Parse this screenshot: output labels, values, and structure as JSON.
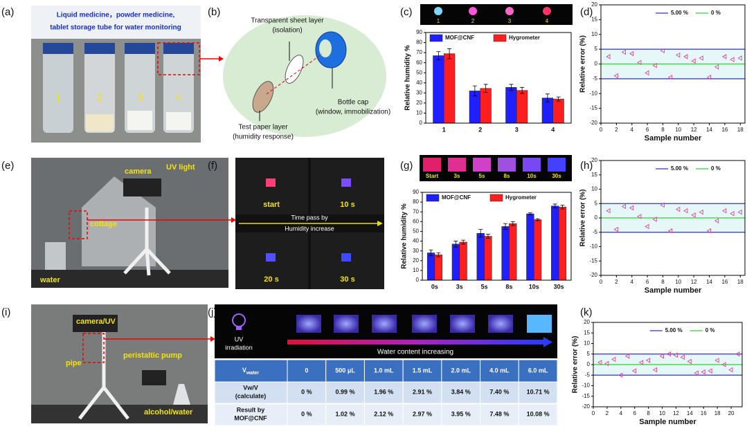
{
  "panel_labels": [
    "(a)",
    "(b)",
    "(c)",
    "(d)",
    "(e)",
    "(f)",
    "(g)",
    "(h)",
    "(i)",
    "(j)",
    "(k)"
  ],
  "panel_a": {
    "caption": [
      "Liquid medicine，powder medicine,",
      "tablet storage tube for water monitoring"
    ],
    "vials": [
      "1",
      "2",
      "3",
      "4"
    ]
  },
  "panel_b": {
    "sheet": [
      "Transparent sheet layer",
      "(isolation)"
    ],
    "cap": [
      "Bottle cap",
      "(window, immobilization)"
    ],
    "paper": [
      "Test paper layer",
      "(humidity response)"
    ]
  },
  "panel_c_strip": [
    "1",
    "2",
    "3",
    "4"
  ],
  "panel_e": [
    "UV light",
    "camera",
    "cottage",
    "water"
  ],
  "panel_f": {
    "tiles": [
      "start",
      "10 s",
      "20 s",
      "30 s"
    ],
    "arrow_text": [
      "Time pass by",
      "Humidity increase"
    ]
  },
  "panel_g_strip": [
    "Start",
    "3s",
    "5s",
    "8s",
    "10s",
    "30s"
  ],
  "panel_i": [
    "camera/UV",
    "pipe",
    "peristaltic pump",
    "alcohol/water"
  ],
  "panel_j": {
    "uv": [
      "UV",
      "irradiation"
    ],
    "arrow_text": "Water content increasing",
    "header": [
      {
        "main": "V",
        "sub": "water"
      },
      "0",
      "500 μL",
      "1.0 mL",
      "1.5 mL",
      "2.0 mL",
      "4.0 mL",
      "6.0 mL"
    ],
    "rows": [
      [
        [
          "Vw/V",
          "(calculate)"
        ],
        "0 %",
        "0.99 %",
        "1.96 %",
        "2.91 %",
        "3.84 %",
        "7.40 %",
        "10.71 %"
      ],
      [
        [
          "Result by",
          "MOF@CNF"
        ],
        "0 %",
        "1.02 %",
        "2.12 %",
        "2.97 %",
        "3.95 %",
        "7.48 %",
        "10.08 %"
      ]
    ]
  },
  "chart_data": [
    {
      "type": "bar",
      "ylabel": "Relative humidity %",
      "categories": [
        "1",
        "2",
        "3",
        "4"
      ],
      "series": [
        {
          "name": "MOF@CNF",
          "color": "#1f1fff",
          "values": [
            67,
            32,
            35.5,
            25
          ],
          "errors": [
            4,
            5,
            3,
            4
          ]
        },
        {
          "name": "Hygrometer",
          "color": "#ff1f1f",
          "values": [
            69,
            34.5,
            32.5,
            24
          ],
          "errors": [
            5,
            4,
            3,
            2
          ]
        }
      ],
      "ylim": [
        0,
        90
      ],
      "yticks": [
        0,
        10,
        20,
        30,
        40,
        50,
        60,
        70,
        80,
        90
      ],
      "legend": "top"
    },
    {
      "type": "scatter",
      "xlabel": "Sample number",
      "ylabel": "Relative error (%)",
      "marker_color": "#e0449a",
      "x": [
        1,
        2,
        3,
        4,
        5,
        6,
        7,
        8,
        9,
        10,
        11,
        12,
        13,
        14,
        15,
        16,
        17,
        18
      ],
      "values": [
        2.5,
        -4,
        4,
        3.5,
        0.5,
        -3,
        -0.5,
        4.5,
        -4.5,
        3,
        2.5,
        1,
        2,
        -4.5,
        -1,
        2.5,
        1.5,
        2
      ],
      "ref_lines": [
        {
          "name": "5.00 %",
          "color": "#3030d0",
          "values": [
            5,
            -5
          ]
        },
        {
          "name": "0 %",
          "color": "#30d030",
          "values": [
            0
          ]
        }
      ],
      "xlim": [
        0,
        18.6
      ],
      "xticks": [
        0,
        2,
        4,
        6,
        8,
        10,
        12,
        14,
        16,
        18
      ],
      "ylim": [
        -20,
        20
      ],
      "yticks": [
        -20,
        -15,
        -10,
        -5,
        0,
        5,
        10,
        15,
        20
      ],
      "legend": "top-right"
    },
    {
      "type": "bar",
      "ylabel": "Relative humidity %",
      "categories": [
        "0s",
        "3s",
        "5s",
        "8s",
        "10s",
        "30s"
      ],
      "series": [
        {
          "name": "MOF@CNF",
          "color": "#1f1fff",
          "values": [
            28,
            37,
            48,
            55,
            68,
            76
          ],
          "errors": [
            3,
            3,
            4,
            3,
            1,
            2
          ]
        },
        {
          "name": "Hygrometer",
          "color": "#ff1f1f",
          "values": [
            26,
            39,
            45,
            58,
            62,
            75
          ],
          "errors": [
            2,
            2,
            2,
            2,
            1,
            2
          ]
        }
      ],
      "ylim": [
        0,
        90
      ],
      "yticks": [
        0,
        10,
        20,
        30,
        40,
        50,
        60,
        70,
        80,
        90
      ],
      "legend": "top"
    },
    {
      "type": "scatter",
      "xlabel": "Sample number",
      "ylabel": "Relative error (%)",
      "marker_color": "#e0449a",
      "x": [
        1,
        2,
        3,
        4,
        5,
        6,
        7,
        8,
        9,
        10,
        11,
        12,
        13,
        14,
        15,
        16,
        17,
        18
      ],
      "values": [
        2.5,
        -4,
        4,
        3.5,
        0.5,
        -3,
        -0.5,
        4.5,
        -4.5,
        3,
        2.5,
        1,
        2,
        -4.5,
        -1,
        2.5,
        1.5,
        2
      ],
      "ref_lines": [
        {
          "name": "5.00 %",
          "color": "#3030d0",
          "values": [
            5,
            -5
          ]
        },
        {
          "name": "0 %",
          "color": "#30d030",
          "values": [
            0
          ]
        }
      ],
      "xlim": [
        0,
        18.6
      ],
      "xticks": [
        0,
        2,
        4,
        6,
        8,
        10,
        12,
        14,
        16,
        18
      ],
      "ylim": [
        -20,
        20
      ],
      "yticks": [
        -20,
        -15,
        -10,
        -5,
        0,
        5,
        10,
        15,
        20
      ],
      "legend": "top-right"
    },
    {
      "type": "scatter",
      "xlabel": "Sample number",
      "ylabel": "Relative error (%)",
      "marker_color": "#e0449a",
      "x": [
        1,
        2,
        3,
        4,
        5,
        6,
        7,
        8,
        9,
        10,
        11,
        12,
        13,
        14,
        15,
        16,
        17,
        18,
        19,
        20,
        21
      ],
      "values": [
        1,
        0.5,
        2.5,
        -5,
        4,
        -3,
        1,
        2,
        -2.5,
        4,
        5,
        4.5,
        3.5,
        1.5,
        -4,
        -3.5,
        -3,
        2,
        0,
        -2.5,
        5
      ],
      "ref_lines": [
        {
          "name": "5.00 %",
          "color": "#3030d0",
          "values": [
            5,
            -5
          ]
        },
        {
          "name": "0 %",
          "color": "#30d030",
          "values": [
            0
          ]
        }
      ],
      "xlim": [
        0,
        21.6
      ],
      "xticks": [
        0,
        2,
        4,
        6,
        8,
        10,
        12,
        14,
        16,
        18,
        20
      ],
      "ylim": [
        -20,
        20
      ],
      "yticks": [
        -20,
        -15,
        -10,
        -5,
        0,
        5,
        10,
        15,
        20
      ],
      "legend": "top-right"
    }
  ]
}
